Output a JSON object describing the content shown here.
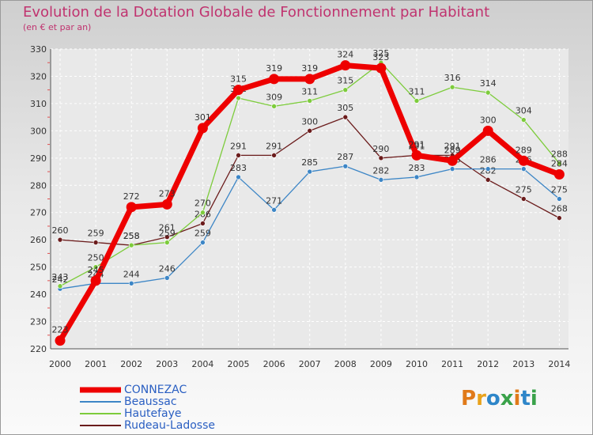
{
  "chart_data": {
    "type": "line",
    "title": "Evolution de la Dotation Globale de Fonctionnement par Habitant",
    "subtitle": "(en € et par an)",
    "xlabel": "",
    "ylabel": "",
    "ylim": [
      220,
      330
    ],
    "yticks": [
      "220",
      "230",
      "240",
      "250",
      "260",
      "270",
      "280",
      "290",
      "300",
      "310",
      "320",
      "330"
    ],
    "categories": [
      "2000",
      "2001",
      "2002",
      "2003",
      "2004",
      "2005",
      "2006",
      "2007",
      "2008",
      "2009",
      "2010",
      "2011",
      "2012",
      "2013",
      "2014"
    ],
    "series": [
      {
        "name": "Rudeau-Ladosse",
        "color": "#6b1c1c",
        "values": [
          260,
          259,
          258,
          261,
          266,
          291,
          291,
          300,
          305,
          290,
          291,
          291,
          282,
          275,
          268
        ]
      },
      {
        "name": "Beaussac",
        "color": "#3d86c6",
        "values": [
          242,
          244,
          244,
          246,
          259,
          283,
          271,
          285,
          287,
          282,
          283,
          286,
          286,
          286,
          275
        ]
      },
      {
        "name": "Hautefaye",
        "color": "#7dcc3c",
        "values": [
          243,
          250,
          258,
          259,
          270,
          312,
          309,
          311,
          315,
          325,
          311,
          316,
          314,
          304,
          288
        ]
      },
      {
        "name": "CONNEZAC",
        "color": "#ee0000",
        "values": [
          223,
          245,
          272,
          273,
          301,
          315,
          319,
          319,
          324,
          323,
          291,
          289,
          300,
          289,
          284
        ]
      }
    ],
    "legend_order": [
      "CONNEZAC",
      "Beaussac",
      "Hautefaye",
      "Rudeau-Ladosse"
    ],
    "legend_position": "bottom-left"
  },
  "logo": {
    "text": "Proxiti",
    "letters": [
      "P",
      "r",
      "o",
      "x",
      "i",
      "t",
      "i"
    ]
  }
}
